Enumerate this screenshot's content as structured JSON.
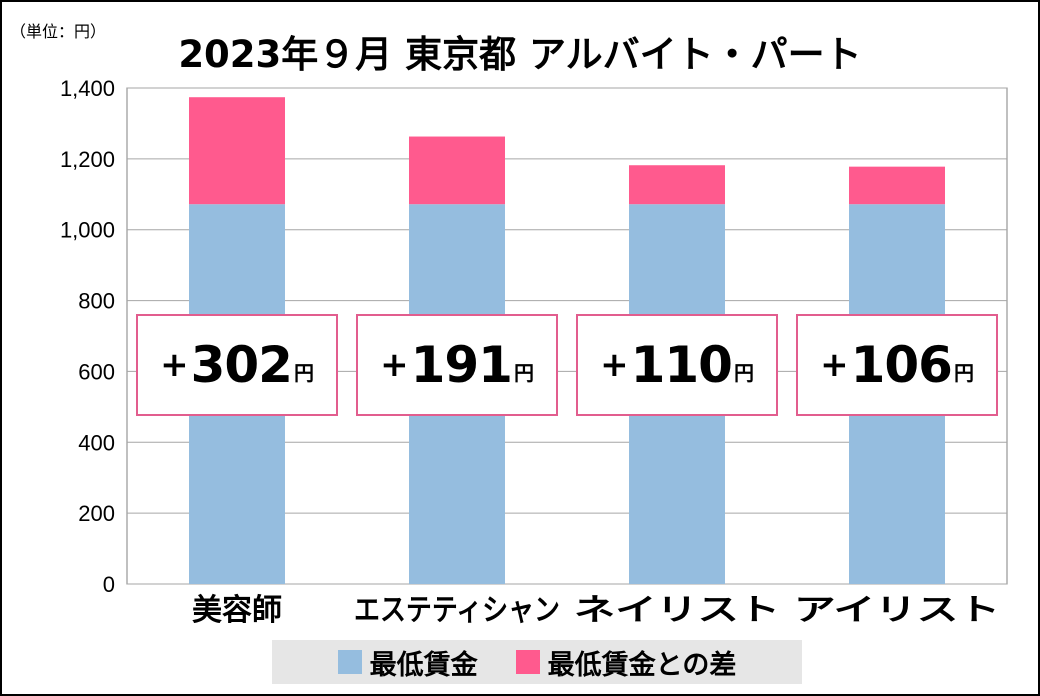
{
  "unit_label": "（単位：円）",
  "chart_data": {
    "type": "bar",
    "stacked": true,
    "title": "2023年９月 東京都 アルバイト・パート",
    "categories": [
      "美容師",
      "エステティシャン",
      "ネイリスト",
      "アイリスト"
    ],
    "series": [
      {
        "name": "最低賃金",
        "color": "#95bddf",
        "values": [
          1072,
          1072,
          1072,
          1072
        ]
      },
      {
        "name": "最低賃金との差",
        "color": "#ff5a8e",
        "values": [
          302,
          191,
          110,
          106
        ]
      }
    ],
    "ylim": [
      0,
      1400
    ],
    "yticks": [
      "0",
      "200",
      "400",
      "600",
      "800",
      "1,000",
      "1,200",
      "1,400"
    ],
    "ytick_values": [
      0,
      200,
      400,
      600,
      800,
      1000,
      1200,
      1400
    ],
    "grid": true,
    "legend": "bottom",
    "data_labels": [
      {
        "plus": "+",
        "value": "302",
        "unit": "円"
      },
      {
        "plus": "+",
        "value": "191",
        "unit": "円"
      },
      {
        "plus": "+",
        "value": "110",
        "unit": "円"
      },
      {
        "plus": "+",
        "value": "106",
        "unit": "円"
      }
    ]
  }
}
